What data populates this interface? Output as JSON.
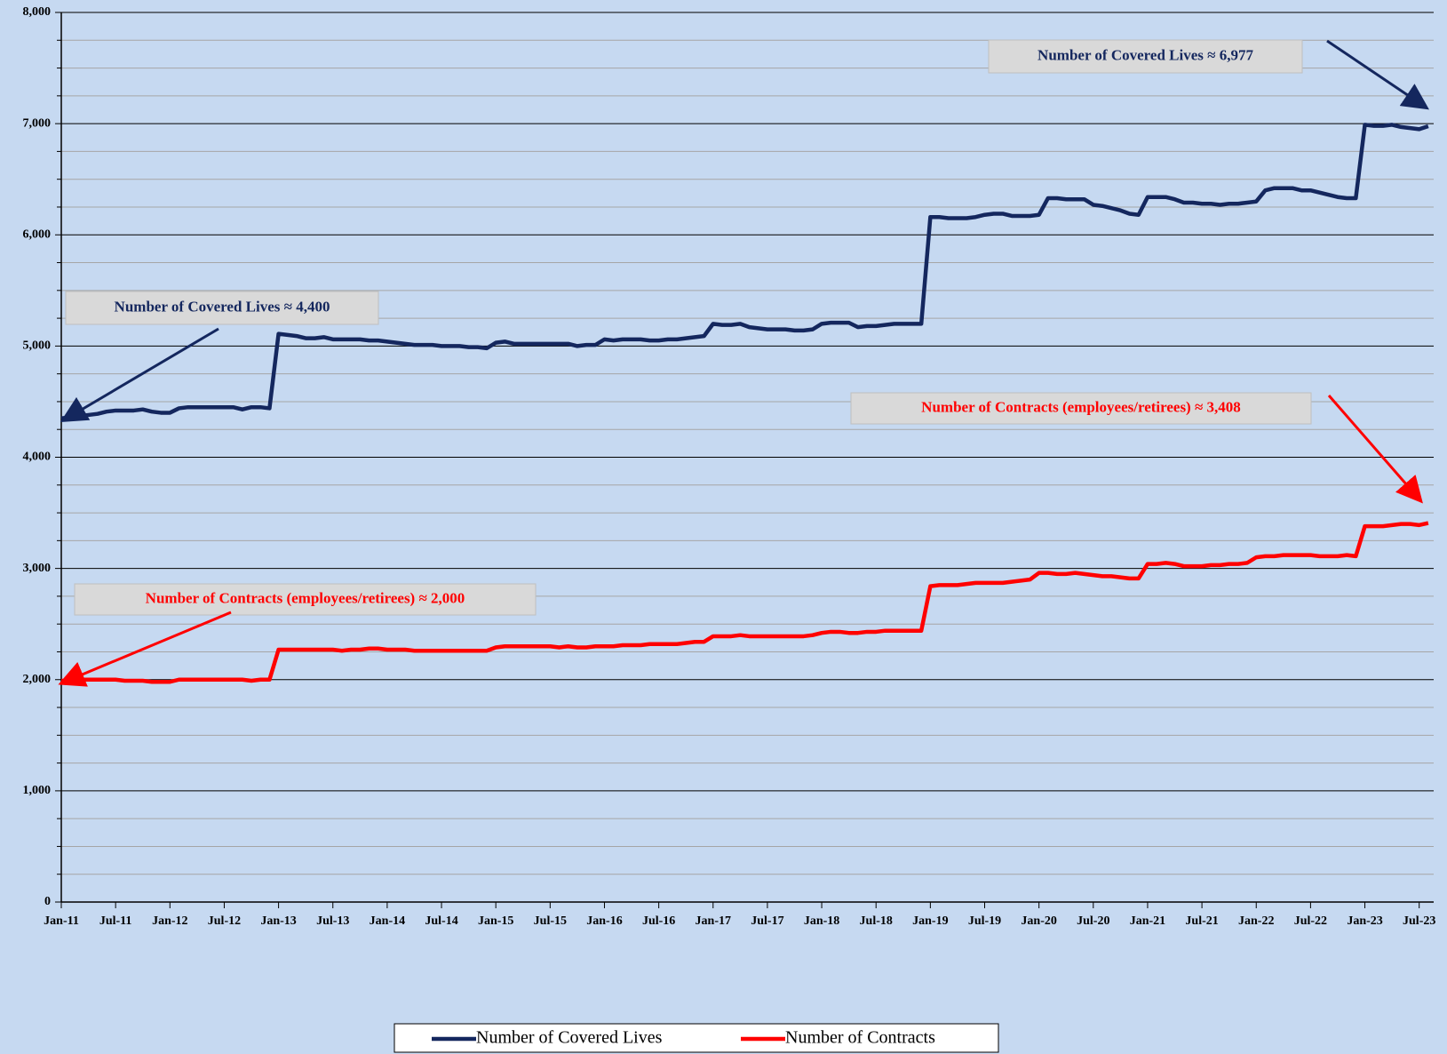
{
  "chart_data": {
    "type": "line",
    "categories": [
      "Jan-11",
      null,
      null,
      null,
      null,
      null,
      "Jul-11",
      null,
      null,
      null,
      null,
      null,
      "Jan-12",
      null,
      null,
      null,
      null,
      null,
      "Jul-12",
      null,
      null,
      null,
      null,
      null,
      "Jan-13",
      null,
      null,
      null,
      null,
      null,
      "Jul-13",
      null,
      null,
      null,
      null,
      null,
      "Jan-14",
      null,
      null,
      null,
      null,
      null,
      "Jul-14",
      null,
      null,
      null,
      null,
      null,
      "Jan-15",
      null,
      null,
      null,
      null,
      null,
      "Jul-15",
      null,
      null,
      null,
      null,
      null,
      "Jan-16",
      null,
      null,
      null,
      null,
      null,
      "Jul-16",
      null,
      null,
      null,
      null,
      null,
      "Jan-17",
      null,
      null,
      null,
      null,
      null,
      "Jul-17",
      null,
      null,
      null,
      null,
      null,
      "Jan-18",
      null,
      null,
      null,
      null,
      null,
      "Jul-18",
      null,
      null,
      null,
      null,
      null,
      "Jan-19",
      null,
      null,
      null,
      null,
      null,
      "Jul-19",
      null,
      null,
      null,
      null,
      null,
      "Jan-20",
      null,
      null,
      null,
      null,
      null,
      "Jul-20",
      null,
      null,
      null,
      null,
      null,
      "Jan-21",
      null,
      null,
      null,
      null,
      null,
      "Jul-21",
      null,
      null,
      null,
      null,
      null,
      "Jan-22",
      null,
      null,
      null,
      null,
      null,
      "Jul-22",
      null,
      null,
      null,
      null,
      null,
      "Jan-23",
      null,
      null,
      null,
      null,
      null,
      "Jul-23",
      null
    ],
    "series": [
      {
        "name": "Number of Covered Lives",
        "color": "#14275e",
        "values": [
          4350,
          4360,
          4370,
          4380,
          4390,
          4410,
          4420,
          4420,
          4420,
          4430,
          4410,
          4400,
          4400,
          4440,
          4450,
          4450,
          4450,
          4450,
          4450,
          4450,
          4430,
          4450,
          4450,
          4440,
          5110,
          5100,
          5090,
          5070,
          5070,
          5080,
          5060,
          5060,
          5060,
          5060,
          5050,
          5050,
          5040,
          5030,
          5020,
          5010,
          5010,
          5010,
          5000,
          5000,
          5000,
          4990,
          4990,
          4980,
          5030,
          5040,
          5020,
          5020,
          5020,
          5020,
          5020,
          5020,
          5020,
          5000,
          5010,
          5010,
          5060,
          5050,
          5060,
          5060,
          5060,
          5050,
          5050,
          5060,
          5060,
          5070,
          5080,
          5090,
          5200,
          5190,
          5190,
          5200,
          5170,
          5160,
          5150,
          5150,
          5150,
          5140,
          5140,
          5150,
          5200,
          5210,
          5210,
          5210,
          5170,
          5180,
          5180,
          5190,
          5200,
          5200,
          5200,
          5200,
          6160,
          6160,
          6150,
          6150,
          6150,
          6160,
          6180,
          6190,
          6190,
          6170,
          6170,
          6170,
          6180,
          6330,
          6330,
          6320,
          6320,
          6320,
          6270,
          6260,
          6240,
          6220,
          6190,
          6180,
          6340,
          6340,
          6340,
          6320,
          6290,
          6290,
          6280,
          6280,
          6270,
          6280,
          6280,
          6290,
          6300,
          6400,
          6420,
          6420,
          6420,
          6400,
          6400,
          6380,
          6360,
          6340,
          6330,
          6330,
          6990,
          6980,
          6980,
          6990,
          6970,
          6960,
          6950,
          6977
        ]
      },
      {
        "name": "Number of Contracts",
        "color": "#ff0000",
        "values": [
          1990,
          1990,
          2000,
          2000,
          2000,
          2000,
          2000,
          1990,
          1990,
          1990,
          1980,
          1980,
          1980,
          2000,
          2000,
          2000,
          2000,
          2000,
          2000,
          2000,
          2000,
          1990,
          2000,
          2000,
          2270,
          2270,
          2270,
          2270,
          2270,
          2270,
          2270,
          2260,
          2270,
          2270,
          2280,
          2280,
          2270,
          2270,
          2270,
          2260,
          2260,
          2260,
          2260,
          2260,
          2260,
          2260,
          2260,
          2260,
          2290,
          2300,
          2300,
          2300,
          2300,
          2300,
          2300,
          2290,
          2300,
          2290,
          2290,
          2300,
          2300,
          2300,
          2310,
          2310,
          2310,
          2320,
          2320,
          2320,
          2320,
          2330,
          2340,
          2340,
          2390,
          2390,
          2390,
          2400,
          2390,
          2390,
          2390,
          2390,
          2390,
          2390,
          2390,
          2400,
          2420,
          2430,
          2430,
          2420,
          2420,
          2430,
          2430,
          2440,
          2440,
          2440,
          2440,
          2440,
          2840,
          2850,
          2850,
          2850,
          2860,
          2870,
          2870,
          2870,
          2870,
          2880,
          2890,
          2900,
          2960,
          2960,
          2950,
          2950,
          2960,
          2950,
          2940,
          2930,
          2930,
          2920,
          2910,
          2910,
          3040,
          3040,
          3050,
          3040,
          3020,
          3020,
          3020,
          3030,
          3030,
          3040,
          3040,
          3050,
          3100,
          3110,
          3110,
          3120,
          3120,
          3120,
          3120,
          3110,
          3110,
          3110,
          3120,
          3110,
          3380,
          3380,
          3380,
          3390,
          3400,
          3400,
          3390,
          3408
        ]
      }
    ],
    "ylim": [
      0,
      8000
    ],
    "yticks": [
      0,
      {
        "value": 1000,
        "label": "1,000"
      },
      {
        "value": 2000,
        "label": "2,000"
      },
      {
        "value": 3000,
        "label": "3,000"
      },
      {
        "value": 4000,
        "label": "4,000"
      },
      {
        "value": 5000,
        "label": "5,000"
      },
      {
        "value": 6000,
        "label": "6,000"
      },
      {
        "value": 7000,
        "label": "7,000"
      },
      {
        "value": 8000,
        "label": "8,000"
      }
    ],
    "minor_yticks": [
      250,
      500,
      750,
      1250,
      1500,
      1750,
      2250,
      2500,
      2750,
      3250,
      3500,
      3750,
      4250,
      4500,
      4750,
      5250,
      5500,
      5750,
      6250,
      6500,
      6750,
      7250,
      7500,
      7750
    ],
    "grid": true,
    "legend": "bottom",
    "annotations": [
      {
        "text": "Number of Covered Lives ≈ 6,977",
        "color": "#14275e"
      },
      {
        "text": "Number of Covered Lives ≈ 4,400",
        "color": "#14275e"
      },
      {
        "text": "Number of Contracts (employees/retirees) ≈ 3,408",
        "color": "#ff0000"
      },
      {
        "text": "Number of Contracts (employees/retirees) ≈ 2,000",
        "color": "#ff0000"
      }
    ]
  }
}
